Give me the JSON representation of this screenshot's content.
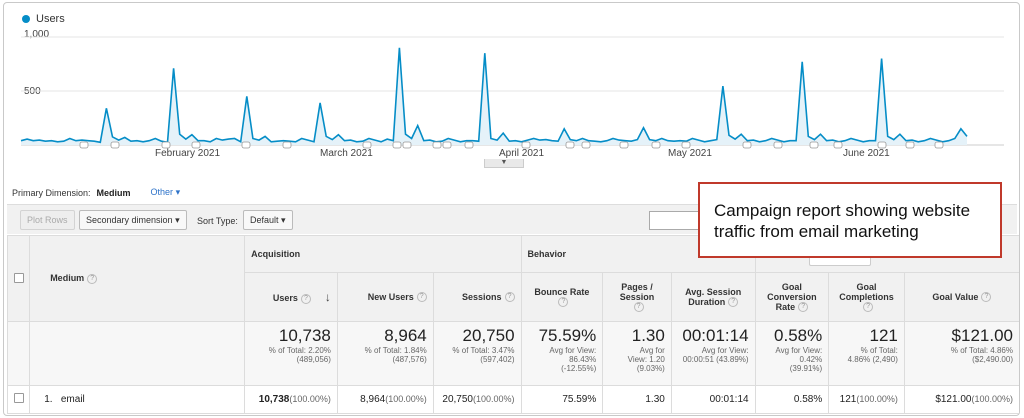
{
  "chart": {
    "legend_label": "Users",
    "y_ticks": [
      "1,000",
      "500"
    ],
    "x_ticks": [
      "February 2021",
      "March 2021",
      "April 2021",
      "May 2021",
      "June 2021"
    ]
  },
  "chart_data": {
    "type": "area",
    "series": [
      {
        "name": "Users",
        "values": [
          40,
          55,
          40,
          45,
          35,
          40,
          30,
          35,
          60,
          40,
          45,
          40,
          35,
          25,
          340,
          75,
          45,
          70,
          35,
          40,
          30,
          40,
          60,
          35,
          25,
          710,
          100,
          55,
          95,
          40,
          40,
          30,
          60,
          45,
          55,
          60,
          30,
          450,
          60,
          45,
          80,
          30,
          35,
          40,
          35,
          30,
          60,
          45,
          30,
          390,
          80,
          50,
          95,
          40,
          45,
          30,
          35,
          60,
          45,
          30,
          55,
          40,
          900,
          100,
          60,
          180,
          40,
          45,
          30,
          35,
          60,
          45,
          30,
          40,
          40,
          35,
          850,
          60,
          45,
          110,
          35,
          40,
          30,
          45,
          60,
          45,
          50,
          40,
          35,
          150,
          50,
          40,
          60,
          40,
          35,
          30,
          40,
          60,
          45,
          40,
          35,
          50,
          160,
          50,
          40,
          60,
          40,
          35,
          40,
          35,
          60,
          45,
          30,
          40,
          50,
          545,
          90,
          55,
          100,
          40,
          45,
          30,
          40,
          60,
          45,
          30,
          40,
          40,
          770,
          80,
          50,
          100,
          40,
          45,
          30,
          40,
          60,
          45,
          30,
          40,
          40,
          800,
          80,
          50,
          100,
          40,
          45,
          30,
          40,
          60,
          45,
          30,
          40,
          60,
          150,
          80
        ]
      }
    ],
    "color": "#058dc7",
    "ylim": [
      0,
      1000
    ],
    "y_ticks": [
      500,
      1000
    ]
  },
  "dimension": {
    "label": "Primary Dimension:",
    "selected": "Medium",
    "other": "Other"
  },
  "toolbar": {
    "plot_rows": "Plot Rows",
    "secondary_dimension": "Secondary dimension",
    "sort_type_label": "Sort Type:",
    "sort_default": "Default"
  },
  "table": {
    "medium_header": "Medium",
    "acquisition": "Acquisition",
    "behavior": "Behavior",
    "headers": {
      "users": "Users",
      "new_users": "New Users",
      "sessions": "Sessions",
      "bounce_rate": "Bounce Rate",
      "pages_session": "Pages / Session",
      "avg_duration_1": "Avg. Session",
      "avg_duration_2": "Duration",
      "goal_conv_1": "Goal",
      "goal_conv_2": "Conversion",
      "goal_conv_3": "Rate",
      "goal_comp_1": "Goal",
      "goal_comp_2": "Completions",
      "goal_value": "Goal Value"
    },
    "totals": {
      "users": "10,738",
      "users_s1": "% of Total: 2.20%",
      "users_s2": "(489,056)",
      "new_users": "8,964",
      "new_users_s1": "% of Total: 1.84%",
      "new_users_s2": "(487,576)",
      "sessions": "20,750",
      "sessions_s1": "% of Total: 3.47%",
      "sessions_s2": "(597,402)",
      "bounce": "75.59%",
      "bounce_s1": "Avg for View:",
      "bounce_s2": "86.43%",
      "bounce_s3": "(-12.55%)",
      "pages": "1.30",
      "pages_s1": "Avg for",
      "pages_s2": "View: 1.20",
      "pages_s3": "(9.03%)",
      "duration": "00:01:14",
      "duration_s1": "Avg for View:",
      "duration_s2": "00:00:51 (43.89%)",
      "conv": "0.58%",
      "conv_s1": "Avg for View:",
      "conv_s2": "0.42%",
      "conv_s3": "(39.91%)",
      "comp": "121",
      "comp_s1": "% of Total:",
      "comp_s2": "4.86% (2,490)",
      "value": "$121.00",
      "value_s1": "% of Total: 4.86%",
      "value_s2": "($2,490.00)"
    },
    "row": {
      "index": "1.",
      "medium": "email",
      "users": "10,738",
      "users_pct": "(100.00%)",
      "new_users": "8,964",
      "new_users_pct": "(100.00%)",
      "sessions": "20,750",
      "sessions_pct": "(100.00%)",
      "bounce": "75.59%",
      "pages": "1.30",
      "duration": "00:01:14",
      "conv": "0.58%",
      "comp": "121",
      "comp_pct": "(100.00%)",
      "value": "$121.00",
      "value_pct": "(100.00%)"
    }
  },
  "callout": {
    "text": "Campaign report showing website traffic from email marketing"
  }
}
